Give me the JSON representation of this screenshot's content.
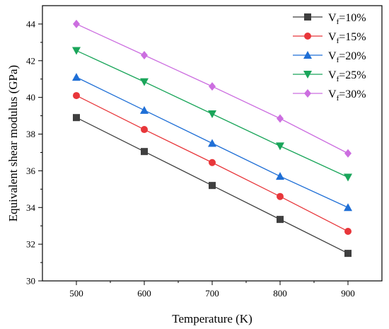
{
  "chart_data": {
    "type": "line",
    "xlabel": "Temperature (K)",
    "ylabel": "Equivalent shear modulus (GPa)",
    "xlim": [
      450,
      950
    ],
    "ylim": [
      30,
      45
    ],
    "x_ticks": [
      500,
      600,
      700,
      800,
      900
    ],
    "y_ticks": [
      30,
      32,
      34,
      36,
      38,
      40,
      42,
      44
    ],
    "grid": false,
    "legend_position": "top-right",
    "x": [
      500,
      600,
      700,
      800,
      900
    ],
    "series": [
      {
        "name": "Vf=10%",
        "name_main": "V",
        "name_sub": "f",
        "name_rest": "=10%",
        "marker": "square",
        "color": "#3f3f3f",
        "values": [
          38.9,
          37.05,
          35.2,
          33.35,
          31.5
        ]
      },
      {
        "name": "Vf=15%",
        "name_main": "V",
        "name_sub": "f",
        "name_rest": "=15%",
        "marker": "circle",
        "color": "#e8363a",
        "values": [
          40.1,
          38.25,
          36.45,
          34.6,
          32.7
        ]
      },
      {
        "name": "Vf=20%",
        "name_main": "V",
        "name_sub": "f",
        "name_rest": "=20%",
        "marker": "triangle-up",
        "color": "#1f6fd6",
        "values": [
          41.1,
          39.3,
          37.5,
          35.7,
          34.0
        ]
      },
      {
        "name": "Vf=25%",
        "name_main": "V",
        "name_sub": "f",
        "name_rest": "=25%",
        "marker": "triangle-down",
        "color": "#1aa55a",
        "values": [
          42.55,
          40.85,
          39.1,
          37.35,
          35.65
        ]
      },
      {
        "name": "Vf=30%",
        "name_main": "V",
        "name_sub": "f",
        "name_rest": "=30%",
        "marker": "diamond",
        "color": "#cc6ee0",
        "values": [
          44.0,
          42.3,
          40.6,
          38.85,
          36.95
        ]
      }
    ]
  }
}
